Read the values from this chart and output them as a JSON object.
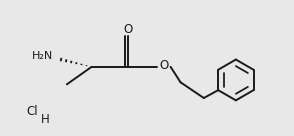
{
  "bg_color": "#e8e8e8",
  "line_color": "#1a1a1a",
  "line_width": 1.4,
  "figsize": [
    2.94,
    1.36
  ],
  "dpi": 100,
  "xlim": [
    0,
    10
  ],
  "ylim": [
    0,
    4.62
  ]
}
